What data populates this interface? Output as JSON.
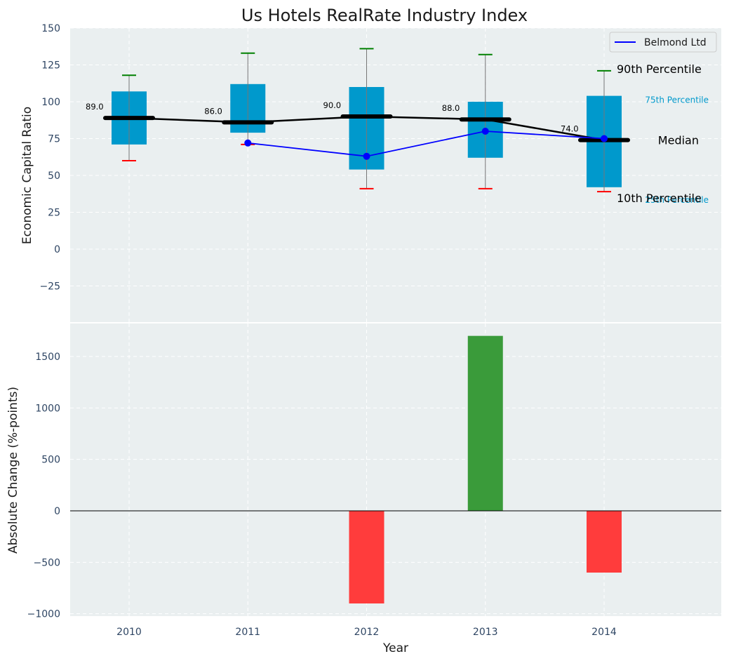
{
  "chart_data": [
    {
      "type": "box",
      "title": "Us Hotels RealRate Industry Index",
      "ylabel": "Economic Capital Ratio",
      "ylim": [
        -50,
        150
      ],
      "yticks": [
        -25,
        0,
        25,
        50,
        75,
        100,
        125,
        150
      ],
      "ytick_labels": [
        "−25",
        "0",
        "25",
        "50",
        "75",
        "100",
        "125",
        "150"
      ],
      "categories": [
        "2010",
        "2011",
        "2012",
        "2013",
        "2014"
      ],
      "grid": true,
      "boxes": [
        {
          "year": "2010",
          "p10": 60,
          "p25": 71,
          "median": 89,
          "p75": 107,
          "p90": 118
        },
        {
          "year": "2011",
          "p10": 71,
          "p25": 79,
          "median": 86,
          "p75": 112,
          "p90": 133
        },
        {
          "year": "2012",
          "p10": 41,
          "p25": 54,
          "median": 90,
          "p75": 110,
          "p90": 136
        },
        {
          "year": "2013",
          "p10": 41,
          "p25": 62,
          "median": 88,
          "p75": 100,
          "p90": 132
        },
        {
          "year": "2014",
          "p10": 39,
          "p25": 42,
          "median": 74,
          "p75": 104,
          "p90": 121
        }
      ],
      "median_labels": [
        "89.0",
        "86.0",
        "90.0",
        "88.0",
        "74.0"
      ],
      "series": [
        {
          "name": "Belmond Ltd",
          "x": [
            "2011",
            "2012",
            "2013",
            "2014"
          ],
          "values": [
            72,
            63,
            80,
            75
          ],
          "color": "#0000ff"
        }
      ],
      "legend": {
        "position": "top-right",
        "entries": [
          "Belmond Ltd"
        ]
      },
      "annotations": {
        "p90": "90th Percentile",
        "p75": "75th Percentile",
        "median": "Median",
        "p25": "25th Percentile",
        "p10": "10th Percentile"
      },
      "colors": {
        "box": "#0099cc",
        "median": "#000000",
        "whisker_high": "#008000",
        "whisker_low": "#ff0000",
        "series": "#0000ff",
        "background": "#eaeff0"
      }
    },
    {
      "type": "bar",
      "ylabel": "Absolute Change (%-points)",
      "xlabel": "Year",
      "categories": [
        "2010",
        "2011",
        "2012",
        "2013",
        "2014"
      ],
      "values": [
        0,
        0,
        -900,
        1700,
        -600
      ],
      "ylim": [
        -1000,
        1850
      ],
      "yticks": [
        -1000,
        -500,
        0,
        500,
        1000,
        1500
      ],
      "ytick_labels": [
        "−1000",
        "−500",
        "0",
        "500",
        "1000",
        "1500"
      ],
      "grid": true,
      "colors": {
        "positive": "#3a9b3a",
        "negative": "#ff3c3c",
        "background": "#eaeff0"
      }
    }
  ]
}
